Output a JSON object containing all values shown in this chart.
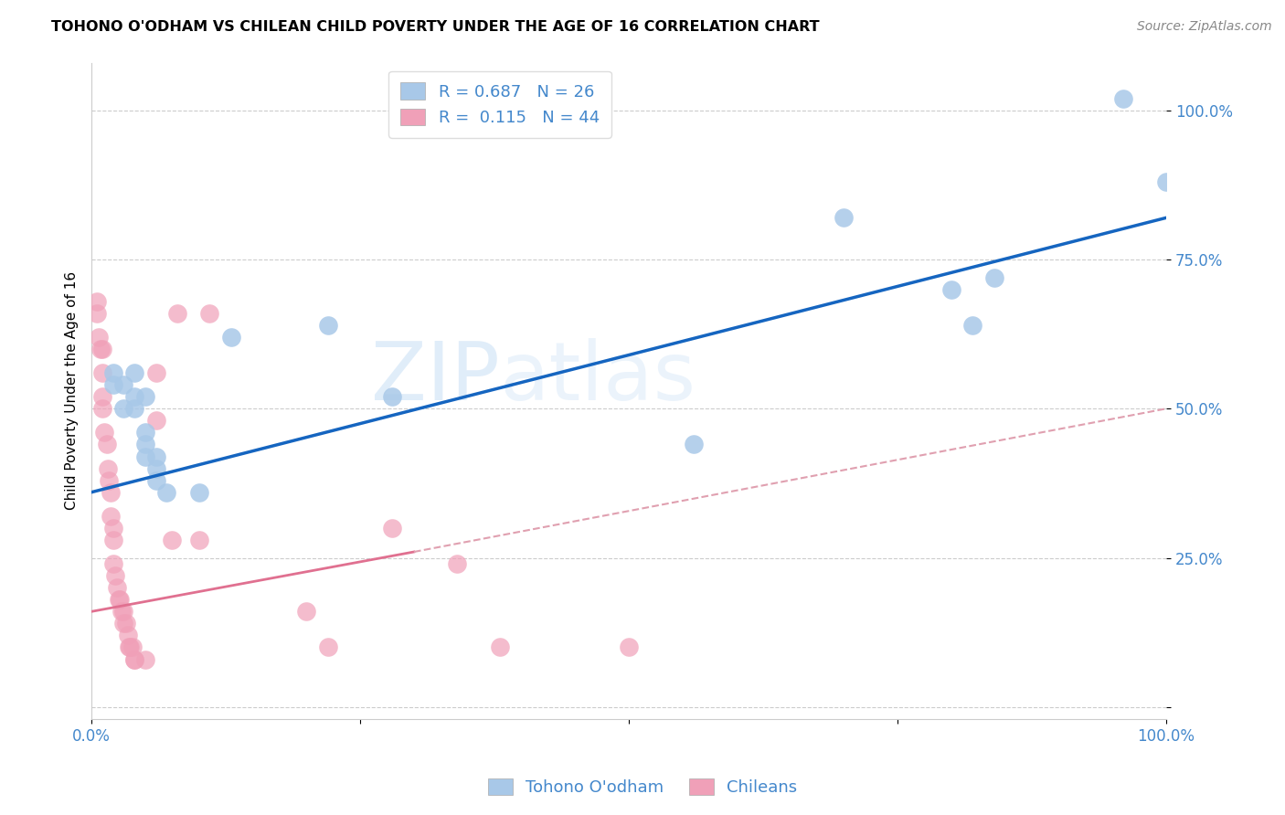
{
  "title": "TOHONO O'ODHAM VS CHILEAN CHILD POVERTY UNDER THE AGE OF 16 CORRELATION CHART",
  "source": "Source: ZipAtlas.com",
  "ylabel": "Child Poverty Under the Age of 16",
  "xlim": [
    0,
    1
  ],
  "ylim": [
    -0.02,
    1.08
  ],
  "xtick_positions": [
    0,
    0.25,
    0.5,
    0.75,
    1.0
  ],
  "xticklabels": [
    "0.0%",
    "",
    "",
    "",
    "100.0%"
  ],
  "ytick_positions": [
    0.0,
    0.25,
    0.5,
    0.75,
    1.0
  ],
  "yticklabels": [
    "",
    "25.0%",
    "50.0%",
    "75.0%",
    "100.0%"
  ],
  "blue_R": "0.687",
  "blue_N": "26",
  "pink_R": "0.115",
  "pink_N": "44",
  "blue_dot_color": "#a8c8e8",
  "pink_dot_color": "#f0a0b8",
  "blue_line_color": "#1565c0",
  "pink_line_color": "#e07090",
  "pink_dashed_color": "#e0a0b0",
  "grid_color": "#cccccc",
  "tick_label_color": "#4488cc",
  "watermark_color": "#c8dff5",
  "blue_scatter": [
    [
      0.02,
      0.56
    ],
    [
      0.02,
      0.54
    ],
    [
      0.03,
      0.54
    ],
    [
      0.03,
      0.5
    ],
    [
      0.04,
      0.56
    ],
    [
      0.04,
      0.52
    ],
    [
      0.04,
      0.5
    ],
    [
      0.05,
      0.52
    ],
    [
      0.05,
      0.46
    ],
    [
      0.05,
      0.44
    ],
    [
      0.05,
      0.42
    ],
    [
      0.06,
      0.42
    ],
    [
      0.06,
      0.4
    ],
    [
      0.06,
      0.38
    ],
    [
      0.07,
      0.36
    ],
    [
      0.1,
      0.36
    ],
    [
      0.13,
      0.62
    ],
    [
      0.22,
      0.64
    ],
    [
      0.28,
      0.52
    ],
    [
      0.56,
      0.44
    ],
    [
      0.7,
      0.82
    ],
    [
      0.8,
      0.7
    ],
    [
      0.82,
      0.64
    ],
    [
      0.84,
      0.72
    ],
    [
      0.96,
      1.02
    ],
    [
      1.0,
      0.88
    ]
  ],
  "pink_scatter": [
    [
      0.005,
      0.68
    ],
    [
      0.005,
      0.66
    ],
    [
      0.007,
      0.62
    ],
    [
      0.008,
      0.6
    ],
    [
      0.01,
      0.6
    ],
    [
      0.01,
      0.56
    ],
    [
      0.01,
      0.52
    ],
    [
      0.01,
      0.5
    ],
    [
      0.012,
      0.46
    ],
    [
      0.014,
      0.44
    ],
    [
      0.015,
      0.4
    ],
    [
      0.016,
      0.38
    ],
    [
      0.018,
      0.36
    ],
    [
      0.018,
      0.32
    ],
    [
      0.02,
      0.3
    ],
    [
      0.02,
      0.28
    ],
    [
      0.02,
      0.24
    ],
    [
      0.022,
      0.22
    ],
    [
      0.024,
      0.2
    ],
    [
      0.025,
      0.18
    ],
    [
      0.026,
      0.18
    ],
    [
      0.028,
      0.16
    ],
    [
      0.03,
      0.16
    ],
    [
      0.03,
      0.14
    ],
    [
      0.032,
      0.14
    ],
    [
      0.034,
      0.12
    ],
    [
      0.035,
      0.1
    ],
    [
      0.036,
      0.1
    ],
    [
      0.038,
      0.1
    ],
    [
      0.04,
      0.08
    ],
    [
      0.04,
      0.08
    ],
    [
      0.05,
      0.08
    ],
    [
      0.06,
      0.56
    ],
    [
      0.06,
      0.48
    ],
    [
      0.075,
      0.28
    ],
    [
      0.08,
      0.66
    ],
    [
      0.1,
      0.28
    ],
    [
      0.11,
      0.66
    ],
    [
      0.2,
      0.16
    ],
    [
      0.22,
      0.1
    ],
    [
      0.28,
      0.3
    ],
    [
      0.34,
      0.24
    ],
    [
      0.38,
      0.1
    ],
    [
      0.5,
      0.1
    ]
  ],
  "blue_trendline": [
    [
      0.0,
      0.36
    ],
    [
      1.0,
      0.82
    ]
  ],
  "pink_solid_trendline": [
    [
      0.0,
      0.16
    ],
    [
      0.3,
      0.26
    ]
  ],
  "pink_dashed_trendline": [
    [
      0.3,
      0.26
    ],
    [
      1.0,
      0.5
    ]
  ],
  "title_fontsize": 11.5,
  "axis_label_fontsize": 11,
  "tick_fontsize": 12,
  "legend_fontsize": 13,
  "source_fontsize": 10
}
